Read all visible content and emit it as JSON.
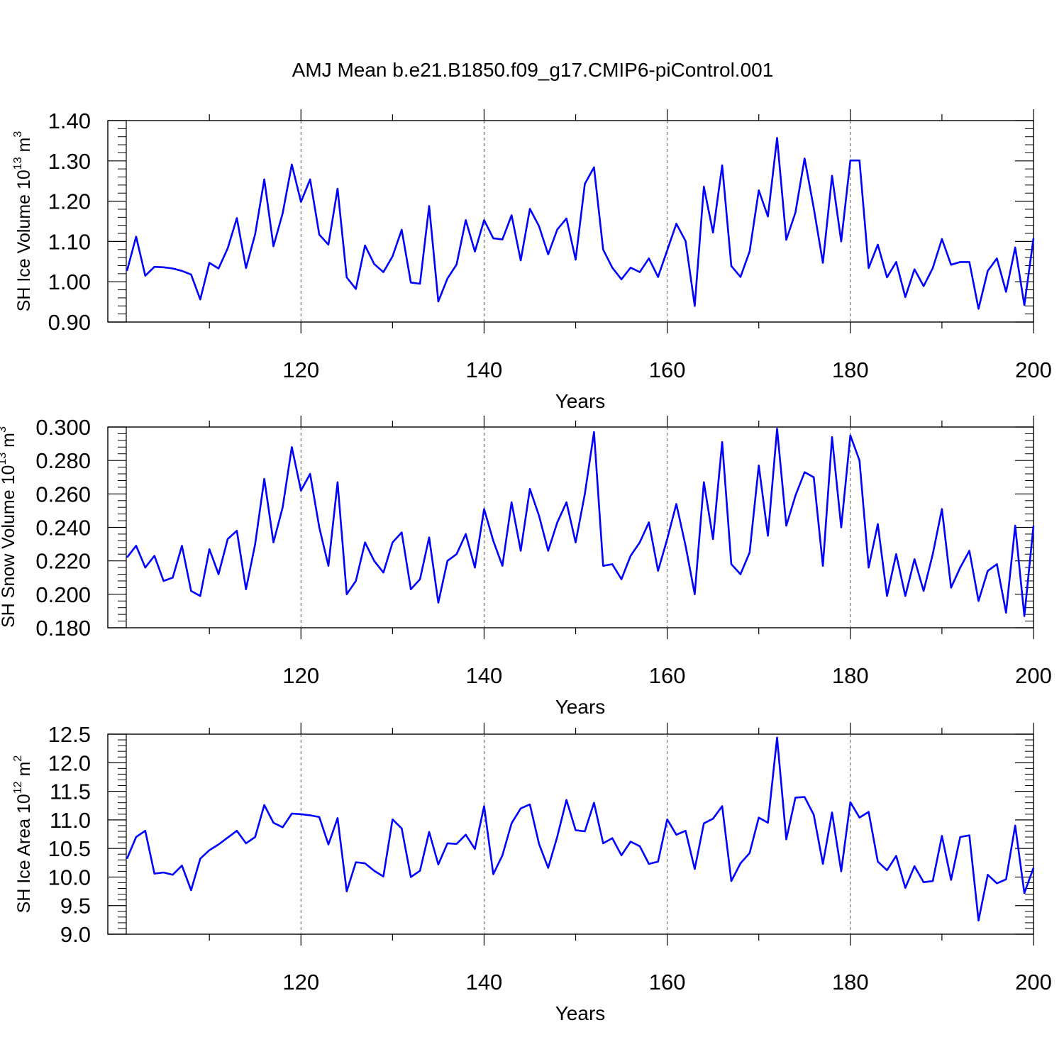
{
  "title": "AMJ Mean b.e21.B1850.f09_g17.CMIP6-piControl.001",
  "chart_data": [
    {
      "type": "line",
      "title": "AMJ Mean b.e21.B1850.f09_g17.CMIP6-piControl.001",
      "xlabel": "Years",
      "ylabel": {
        "prefix": "SH Ice Volume 10",
        "exp": "13",
        "unit": " m",
        "unit_exp": "3"
      },
      "xlim": [
        101,
        200
      ],
      "ylim": [
        0.9,
        1.4
      ],
      "yticks": [
        "0.90",
        "1.00",
        "1.10",
        "1.20",
        "1.30",
        "1.40"
      ],
      "xticks": [
        "120",
        "140",
        "160",
        "180",
        "200"
      ],
      "color": "#0000ff",
      "x": [
        101,
        102,
        103,
        104,
        105,
        106,
        107,
        108,
        109,
        110,
        111,
        112,
        113,
        114,
        115,
        116,
        117,
        118,
        119,
        120,
        121,
        122,
        123,
        124,
        125,
        126,
        127,
        128,
        129,
        130,
        131,
        132,
        133,
        134,
        135,
        136,
        137,
        138,
        139,
        140,
        141,
        142,
        143,
        144,
        145,
        146,
        147,
        148,
        149,
        150,
        151,
        152,
        153,
        154,
        155,
        156,
        157,
        158,
        159,
        160,
        161,
        162,
        163,
        164,
        165,
        166,
        167,
        168,
        169,
        170,
        171,
        172,
        173,
        174,
        175,
        176,
        177,
        178,
        179,
        180,
        181,
        182,
        183,
        184,
        185,
        186,
        187,
        188,
        189,
        190,
        191,
        192,
        193,
        194,
        195,
        196,
        197,
        198,
        199,
        200
      ],
      "values": [
        1.027,
        1.112,
        1.015,
        1.037,
        1.036,
        1.033,
        1.027,
        1.018,
        0.956,
        1.047,
        1.033,
        1.083,
        1.158,
        1.034,
        1.118,
        1.254,
        1.088,
        1.17,
        1.291,
        1.198,
        1.254,
        1.117,
        1.092,
        1.231,
        1.011,
        0.982,
        1.09,
        1.044,
        1.024,
        1.063,
        1.129,
        0.998,
        0.995,
        1.188,
        0.951,
        1.008,
        1.043,
        1.153,
        1.075,
        1.153,
        1.108,
        1.105,
        1.165,
        1.053,
        1.181,
        1.138,
        1.068,
        1.13,
        1.157,
        1.055,
        1.243,
        1.284,
        1.08,
        1.035,
        1.006,
        1.035,
        1.024,
        1.058,
        1.012,
        1.078,
        1.144,
        1.101,
        0.94,
        1.236,
        1.122,
        1.289,
        1.039,
        1.012,
        1.075,
        1.227,
        1.162,
        1.357,
        1.104,
        1.172,
        1.306,
        1.183,
        1.047,
        1.263,
        1.1,
        1.301,
        1.301,
        1.034,
        1.092,
        1.011,
        1.049,
        0.962,
        1.031,
        0.989,
        1.034,
        1.106,
        1.042,
        1.049,
        1.049,
        0.933,
        1.027,
        1.058,
        0.975,
        1.085,
        0.942,
        1.108
      ]
    },
    {
      "type": "line",
      "xlabel": "Years",
      "ylabel": {
        "prefix": "SH Snow Volume 10",
        "exp": "13",
        "unit": " m",
        "unit_exp": "3"
      },
      "xlim": [
        101,
        200
      ],
      "ylim": [
        0.18,
        0.3
      ],
      "yticks": [
        "0.180",
        "0.200",
        "0.220",
        "0.240",
        "0.260",
        "0.280",
        "0.300"
      ],
      "xticks": [
        "120",
        "140",
        "160",
        "180",
        "200"
      ],
      "color": "#0000ff",
      "x": [
        101,
        102,
        103,
        104,
        105,
        106,
        107,
        108,
        109,
        110,
        111,
        112,
        113,
        114,
        115,
        116,
        117,
        118,
        119,
        120,
        121,
        122,
        123,
        124,
        125,
        126,
        127,
        128,
        129,
        130,
        131,
        132,
        133,
        134,
        135,
        136,
        137,
        138,
        139,
        140,
        141,
        142,
        143,
        144,
        145,
        146,
        147,
        148,
        149,
        150,
        151,
        152,
        153,
        154,
        155,
        156,
        157,
        158,
        159,
        160,
        161,
        162,
        163,
        164,
        165,
        166,
        167,
        168,
        169,
        170,
        171,
        172,
        173,
        174,
        175,
        176,
        177,
        178,
        179,
        180,
        181,
        182,
        183,
        184,
        185,
        186,
        187,
        188,
        189,
        190,
        191,
        192,
        193,
        194,
        195,
        196,
        197,
        198,
        199,
        200
      ],
      "values": [
        0.222,
        0.229,
        0.216,
        0.223,
        0.208,
        0.21,
        0.229,
        0.202,
        0.199,
        0.227,
        0.212,
        0.233,
        0.238,
        0.203,
        0.23,
        0.269,
        0.231,
        0.252,
        0.288,
        0.262,
        0.272,
        0.24,
        0.217,
        0.267,
        0.2,
        0.208,
        0.231,
        0.22,
        0.213,
        0.231,
        0.237,
        0.203,
        0.209,
        0.234,
        0.195,
        0.22,
        0.224,
        0.236,
        0.216,
        0.251,
        0.232,
        0.217,
        0.255,
        0.226,
        0.263,
        0.247,
        0.226,
        0.243,
        0.255,
        0.231,
        0.26,
        0.297,
        0.217,
        0.218,
        0.209,
        0.223,
        0.231,
        0.243,
        0.214,
        0.233,
        0.254,
        0.229,
        0.2,
        0.267,
        0.233,
        0.291,
        0.218,
        0.212,
        0.225,
        0.277,
        0.235,
        0.299,
        0.241,
        0.259,
        0.273,
        0.27,
        0.217,
        0.294,
        0.24,
        0.295,
        0.28,
        0.216,
        0.242,
        0.199,
        0.224,
        0.199,
        0.221,
        0.202,
        0.224,
        0.251,
        0.204,
        0.216,
        0.226,
        0.196,
        0.214,
        0.218,
        0.189,
        0.241,
        0.187,
        0.241
      ]
    },
    {
      "type": "line",
      "xlabel": "Years",
      "ylabel": {
        "prefix": "SH Ice Area 10",
        "exp": "12",
        "unit": " m",
        "unit_exp": "2"
      },
      "xlim": [
        101,
        200
      ],
      "ylim": [
        9.0,
        12.5
      ],
      "yticks": [
        "9.0",
        "9.5",
        "10.0",
        "10.5",
        "11.0",
        "11.5",
        "12.0",
        "12.5"
      ],
      "xticks": [
        "120",
        "140",
        "160",
        "180",
        "200"
      ],
      "color": "#0000ff",
      "x": [
        101,
        102,
        103,
        104,
        105,
        106,
        107,
        108,
        109,
        110,
        111,
        112,
        113,
        114,
        115,
        116,
        117,
        118,
        119,
        120,
        121,
        122,
        123,
        124,
        125,
        126,
        127,
        128,
        129,
        130,
        131,
        132,
        133,
        134,
        135,
        136,
        137,
        138,
        139,
        140,
        141,
        142,
        143,
        144,
        145,
        146,
        147,
        148,
        149,
        150,
        151,
        152,
        153,
        154,
        155,
        156,
        157,
        158,
        159,
        160,
        161,
        162,
        163,
        164,
        165,
        166,
        167,
        168,
        169,
        170,
        171,
        172,
        173,
        174,
        175,
        176,
        177,
        178,
        179,
        180,
        181,
        182,
        183,
        184,
        185,
        186,
        187,
        188,
        189,
        190,
        191,
        192,
        193,
        194,
        195,
        196,
        197,
        198,
        199,
        200
      ],
      "values": [
        10.32,
        10.7,
        10.81,
        10.06,
        10.08,
        10.04,
        10.2,
        9.77,
        10.32,
        10.47,
        10.57,
        10.69,
        10.81,
        10.59,
        10.7,
        11.26,
        10.95,
        10.87,
        11.11,
        11.1,
        11.08,
        11.05,
        10.57,
        11.03,
        9.75,
        10.26,
        10.24,
        10.11,
        10.01,
        11.01,
        10.85,
        10.0,
        10.11,
        10.79,
        10.22,
        10.59,
        10.58,
        10.74,
        10.49,
        11.24,
        10.05,
        10.38,
        10.94,
        11.2,
        11.27,
        10.58,
        10.16,
        10.71,
        11.35,
        10.82,
        10.8,
        11.3,
        10.59,
        10.68,
        10.38,
        10.62,
        10.54,
        10.23,
        10.27,
        11.01,
        10.74,
        10.81,
        10.14,
        10.94,
        11.02,
        11.24,
        9.93,
        10.24,
        10.42,
        11.04,
        10.95,
        12.44,
        10.66,
        11.39,
        11.4,
        11.09,
        10.23,
        11.13,
        10.1,
        11.31,
        11.04,
        11.14,
        10.27,
        10.12,
        10.37,
        9.81,
        10.19,
        9.91,
        9.93,
        10.72,
        9.95,
        10.7,
        10.73,
        9.24,
        10.04,
        9.89,
        9.96,
        10.9,
        9.72,
        10.16
      ]
    }
  ]
}
